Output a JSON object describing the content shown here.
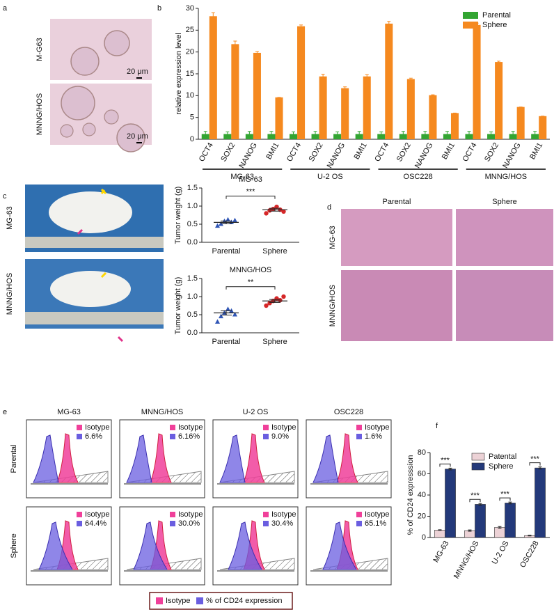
{
  "figure": {
    "panel_labels": [
      "a",
      "b",
      "c",
      "d",
      "e",
      "f"
    ],
    "a": {
      "rows": [
        "M-G63",
        "MNNG/HOS"
      ],
      "scale_bar": [
        "20 μm",
        "20 μm"
      ]
    },
    "c": {
      "rows": [
        "MG-63",
        "MNNG/HOS"
      ]
    },
    "d": {
      "columns": [
        "Parental",
        "Sphere"
      ],
      "rows": [
        "MG-63",
        "MNNG/HOS"
      ]
    },
    "e": {
      "columns": [
        "MG-63",
        "MNNG/HOS",
        "U-2 OS",
        "OSC228"
      ],
      "rows": [
        "Parental",
        "Sphere"
      ],
      "gate_label": "Isotype",
      "percentages": [
        [
          "6.6%",
          "6.16%",
          "9.0%",
          "1.6%"
        ],
        [
          "64.4%",
          "30.0%",
          "30.4%",
          "65.1%"
        ]
      ],
      "legend": [
        "Isotype",
        "% of CD24 expression"
      ]
    }
  },
  "chart_data": [
    {
      "type": "bar",
      "ylabel": "relative expression level",
      "categories": [
        "OCT4",
        "SOX2",
        "NANOG",
        "BMI1",
        "OCT4",
        "SOX2",
        "NANOG",
        "BMI1",
        "OCT4",
        "SOX2",
        "NANOG",
        "BMI1",
        "OCT4",
        "SOX2",
        "NANOG",
        "BMI1"
      ],
      "groups": [
        "MG-63",
        "U-2 OS",
        "OSC228",
        "MNNG/HOS"
      ],
      "ylim": [
        0,
        30
      ],
      "yticks": [
        0,
        5,
        10,
        15,
        20,
        25,
        30
      ],
      "legend": "top-right",
      "series": [
        {
          "name": "Parental",
          "color": "#33a532",
          "values": [
            1.2,
            1.2,
            1.2,
            1.2,
            1.2,
            1.2,
            1.2,
            1.2,
            1.2,
            1.2,
            1.2,
            1.2,
            1.2,
            1.2,
            1.2,
            1.2
          ],
          "errors": [
            0.6,
            0.5,
            0.6,
            0.6,
            0.5,
            0.6,
            0.5,
            0.6,
            0.5,
            0.6,
            0.6,
            0.6,
            0.6,
            0.5,
            0.6,
            0.6
          ]
        },
        {
          "name": "Sphere",
          "color": "#f5891f",
          "values": [
            28.2,
            21.8,
            19.8,
            9.6,
            25.9,
            14.4,
            11.7,
            14.4,
            26.5,
            13.8,
            10.1,
            6.0,
            26.2,
            17.7,
            7.4,
            5.3
          ],
          "errors": [
            0.8,
            0.7,
            0.3,
            0,
            0.3,
            0.5,
            0.3,
            0.4,
            0.5,
            0.2,
            0.1,
            0,
            0.4,
            0.2,
            0,
            0
          ]
        }
      ]
    },
    {
      "type": "strip",
      "title": "MG-63",
      "ylabel": "Tumor weight (g)",
      "categories": [
        "Parental",
        "Sphere"
      ],
      "ylim": [
        0,
        1.5
      ],
      "yticks": [
        {
          "value": 0,
          "label": "0.0"
        },
        {
          "value": 0.5,
          "label": "0.5"
        },
        {
          "value": 1,
          "label": "1.0"
        },
        {
          "value": 1.5,
          "label": "1.5"
        }
      ],
      "points": [
        [
          0.45,
          0.5,
          0.58,
          0.62,
          0.55,
          0.6
        ],
        [
          0.8,
          0.88,
          0.92,
          0.98,
          0.9,
          0.85
        ]
      ],
      "colors": [
        "#2f55b5",
        "#d62728"
      ],
      "means": [
        0.55,
        0.9
      ],
      "sem": [
        0.04,
        0.04
      ],
      "annotation": "***"
    },
    {
      "type": "strip",
      "title": "MNNG/HOS",
      "ylabel": "Tumor weight (g)",
      "categories": [
        "Parental",
        "Sphere"
      ],
      "ylim": [
        0,
        1.5
      ],
      "yticks": [
        {
          "value": 0,
          "label": "0.0"
        },
        {
          "value": 0.5,
          "label": "0.5"
        },
        {
          "value": 1,
          "label": "1.0"
        },
        {
          "value": 1.5,
          "label": "1.5"
        }
      ],
      "points": [
        [
          0.3,
          0.45,
          0.55,
          0.65,
          0.6,
          0.5
        ],
        [
          0.75,
          0.82,
          0.88,
          0.95,
          0.9,
          1.0
        ]
      ],
      "colors": [
        "#2f55b5",
        "#d62728"
      ],
      "means": [
        0.55,
        0.88
      ],
      "sem": [
        0.06,
        0.04
      ],
      "annotation": "**"
    },
    {
      "type": "bar",
      "ylabel": "% of CD24 expresssion",
      "categories": [
        "MG-63",
        "MNNG/HOS",
        "U-2 OS",
        "OSC228"
      ],
      "ylim": [
        0,
        80
      ],
      "yticks": [
        0,
        20,
        40,
        60,
        80
      ],
      "legend": "top",
      "series": [
        {
          "name": "Patental",
          "color": "#ecd2d6",
          "values": [
            7,
            6.5,
            9.5,
            1.8
          ],
          "errors": [
            0.3,
            0.6,
            0.8,
            0.3
          ]
        },
        {
          "name": "Sphere",
          "color": "#23397a",
          "values": [
            64.5,
            31.2,
            32.5,
            65.5
          ],
          "errors": [
            0.8,
            0.8,
            0.9,
            1.0
          ]
        }
      ],
      "annotations": [
        "***",
        "***",
        "***",
        "***"
      ]
    }
  ]
}
